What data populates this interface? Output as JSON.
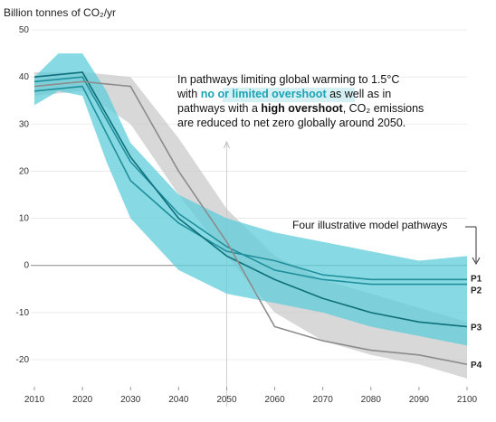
{
  "chart_data": {
    "type": "line",
    "ylabel": "Billion tonnes of CO₂/yr",
    "y_ticks": [
      50,
      40,
      30,
      20,
      10,
      0,
      -10,
      -20
    ],
    "x_ticks": [
      2010,
      2020,
      2030,
      2040,
      2050,
      2060,
      2070,
      2080,
      2090,
      2100
    ],
    "xlim": [
      2010,
      2100
    ],
    "ylim": [
      -25,
      50
    ],
    "annotation": {
      "line1": "In pathways limiting global warming to 1.5°C",
      "line2_pre": "with ",
      "line2_hl": "no or limited overshoot",
      "line2_post": " as well as in",
      "line3_pre": "pathways with a ",
      "line3_bold": "high overshoot",
      "line3_post": ", CO₂ emissions",
      "line4": "are reduced to net zero globally around 2050."
    },
    "callout": "Four illustrative model pathways",
    "colors": {
      "teal_band": "#5fcdd9",
      "teal_line": "#1f8f9c",
      "grey_band": "#c8c8c8",
      "grey_line": "#8c8c8c",
      "dark_teal": "#0e6f7a"
    },
    "ranges": [
      {
        "name": "no or limited overshoot range",
        "x": [
          2010,
          2015,
          2020,
          2025,
          2030,
          2040,
          2050,
          2060,
          2070,
          2080,
          2090,
          2100
        ],
        "upper": [
          40,
          45,
          45,
          37,
          26,
          15,
          10,
          7,
          5,
          3,
          1,
          2
        ],
        "lower": [
          34,
          37,
          36,
          22,
          10,
          -1,
          -6,
          -8,
          -10,
          -13,
          -15,
          -17
        ]
      },
      {
        "name": "high overshoot range",
        "x": [
          2010,
          2020,
          2030,
          2040,
          2050,
          2060,
          2070,
          2080,
          2090,
          2100
        ],
        "upper": [
          41,
          41,
          40,
          27,
          12,
          2,
          -3,
          -6,
          -9,
          -12
        ],
        "lower": [
          36,
          37,
          30,
          15,
          2,
          -10,
          -16,
          -19,
          -21,
          -24
        ]
      }
    ],
    "series": [
      {
        "name": "P1",
        "x": [
          2010,
          2020,
          2030,
          2040,
          2050,
          2060,
          2070,
          2080,
          2090,
          2100
        ],
        "y": [
          37,
          38,
          18,
          9,
          3,
          1,
          -2,
          -3,
          -3,
          -3
        ]
      },
      {
        "name": "P2",
        "x": [
          2010,
          2020,
          2030,
          2040,
          2050,
          2060,
          2070,
          2080,
          2090,
          2100
        ],
        "y": [
          39,
          40,
          22,
          11,
          4,
          -1,
          -3,
          -4,
          -4,
          -4
        ]
      },
      {
        "name": "P3",
        "x": [
          2010,
          2020,
          2030,
          2040,
          2050,
          2060,
          2070,
          2080,
          2090,
          2100
        ],
        "y": [
          40,
          41,
          23,
          10,
          2,
          -3,
          -7,
          -10,
          -12,
          -13
        ]
      },
      {
        "name": "P4",
        "x": [
          2010,
          2020,
          2030,
          2040,
          2050,
          2060,
          2070,
          2080,
          2090,
          2100
        ],
        "y": [
          38,
          39,
          38,
          20,
          5,
          -13,
          -16,
          -18,
          -19,
          -21
        ]
      }
    ]
  }
}
